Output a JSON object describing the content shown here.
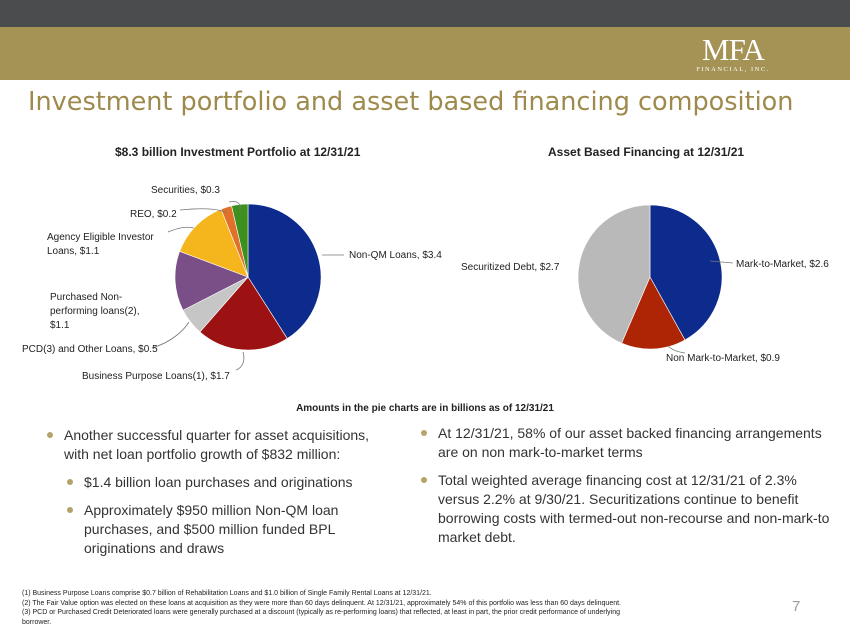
{
  "header": {
    "logo_main": "MFA",
    "logo_sub": "FINANCIAL, INC."
  },
  "page_title": "Investment portfolio and asset based financing composition",
  "chart_data": [
    {
      "type": "pie",
      "title": "$8.3 billion Investment Portfolio at 12/31/21",
      "slices": [
        {
          "label": "Non-QM Loans, $3.4",
          "value": 3.4,
          "color": "#0d2b8c"
        },
        {
          "label": "Business Purpose Loans(1), $1.7",
          "value": 1.7,
          "color": "#9c1111"
        },
        {
          "label": "PCD(3) and Other Loans, $0.5",
          "value": 0.5,
          "color": "#c6c6c6"
        },
        {
          "label": "Purchased Non-performing loans(2), $1.1",
          "value": 1.1,
          "color": "#7a4e86"
        },
        {
          "label": "Agency Eligible Investor Loans, $1.1",
          "value": 1.1,
          "color": "#f5b51c"
        },
        {
          "label": "REO, $0.2",
          "value": 0.2,
          "color": "#e0702a"
        },
        {
          "label": "Securities, $0.3",
          "value": 0.3,
          "color": "#3d8f1e"
        }
      ]
    },
    {
      "type": "pie",
      "title": "Asset Based Financing at 12/31/21",
      "slices": [
        {
          "label": "Mark-to-Market, $2.6",
          "value": 2.6,
          "color": "#0d2b8c"
        },
        {
          "label": "Non Mark-to-Market, $0.9",
          "value": 0.9,
          "color": "#ae2505"
        },
        {
          "label": "Securitized Debt, $2.7",
          "value": 2.7,
          "color": "#b9b9b9"
        }
      ]
    }
  ],
  "labels_left": {
    "securities": "Securities, $0.3",
    "reo": "REO, $0.2",
    "agency_line1": "Agency Eligible Investor",
    "agency_line2": "Loans, $1.1",
    "nonqm": "Non-QM Loans, $3.4",
    "purchased_line1": "Purchased Non-",
    "purchased_line2": "performing loans(2),",
    "purchased_line3": "$1.1",
    "pcd": "PCD(3) and Other Loans, $0.5",
    "bpl": "Business Purpose Loans(1), $1.7"
  },
  "labels_right": {
    "mtm": "Mark-to-Market, $2.6",
    "securitized": "Securitized Debt, $2.7",
    "nonmtm": "Non Mark-to-Market, $0.9"
  },
  "amounts_note": "Amounts in the pie charts are in billions as of 12/31/21",
  "bullets_left": [
    "Another successful quarter for asset acquisitions, with net loan portfolio growth of $832 million:",
    "$1.4 billion loan purchases and originations",
    "Approximately $950 million Non-QM loan purchases, and $500 million funded BPL originations and draws"
  ],
  "bullets_right": [
    "At 12/31/21, 58% of our asset backed financing arrangements are on non mark-to-market terms",
    "Total weighted average financing cost at 12/31/21 of 2.3% versus 2.2% at 9/30/21.  Securitizations continue to benefit borrowing costs with termed-out non-recourse and non-mark-to market debt."
  ],
  "footnotes": [
    "(1) Business Purpose Loans comprise $0.7 billion of Rehabilitation Loans and $1.0 billion of Single Family Rental Loans at 12/31/21.",
    "(2) The Fair Value option was elected on these loans at acquisition as they were more than 60 days delinquent. At 12/31/21, approximately 54% of this portfolio was less than 60 days delinquent.",
    "(3) PCD or Purchased Credit Deteriorated loans were generally purchased at a discount (typically as re-performing loans) that reflected, at least in part, the prior credit performance of underlying",
    "borrower."
  ],
  "page_number": "7"
}
